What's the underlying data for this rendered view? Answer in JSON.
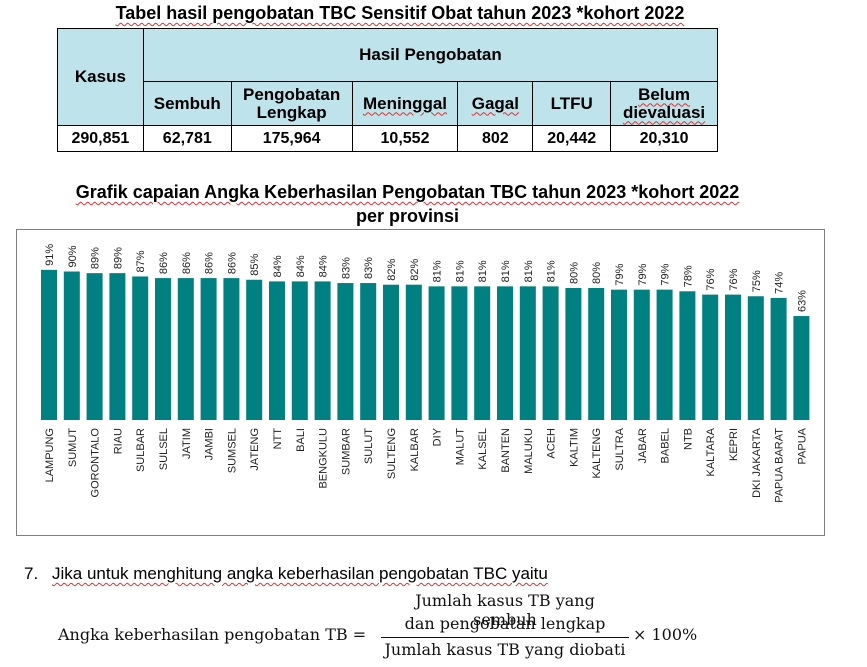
{
  "table_title": "Tabel hasil pengobatan TBC Sensitif Obat tahun 2023 *kohort 2022",
  "table": {
    "kasus_label": "Kasus",
    "group_label": "Hasil Pengobatan",
    "columns": [
      "Sembuh",
      "Pengobatan Lengkap",
      "Meninggal",
      "Gagal",
      "LTFU",
      "Belum dievaluasi"
    ],
    "values": {
      "kasus": "290,851",
      "sembuh": "62,781",
      "lengkap": "175,964",
      "meninggal": "10,552",
      "gagal": "802",
      "ltfu": "20,442",
      "belum": "20,310"
    }
  },
  "chart_title_line1": "Grafik capaian Angka Keberhasilan Pengobatan TBC tahun 2023 *kohort 2022",
  "chart_title_line2": "per provinsi",
  "chart_data": {
    "type": "bar",
    "title": "Grafik capaian Angka Keberhasilan Pengobatan TBC tahun 2023 *kohort 2022 per provinsi",
    "categories": [
      "LAMPUNG",
      "SUMUT",
      "GORONTALO",
      "RIAU",
      "SULBAR",
      "SULSEL",
      "JATIM",
      "JAMBI",
      "SUMSEL",
      "JATENG",
      "NTT",
      "BALI",
      "BENGKULU",
      "SUMBAR",
      "SULUT",
      "SULTENG",
      "KALBAR",
      "DIY",
      "MALUT",
      "KALSEL",
      "BANTEN",
      "MALUKU",
      "ACEH",
      "KALTIM",
      "KALTENG",
      "SULTRA",
      "JABAR",
      "BABEL",
      "NTB",
      "KALTARA",
      "KEPRI",
      "DKI JAKARTA",
      "PAPUA BARAT",
      "PAPUA"
    ],
    "values": [
      91,
      90,
      89,
      89,
      87,
      86,
      86,
      86,
      86,
      85,
      84,
      84,
      84,
      83,
      83,
      82,
      82,
      81,
      81,
      81,
      81,
      81,
      81,
      80,
      80,
      79,
      79,
      79,
      78,
      76,
      76,
      75,
      74,
      63
    ],
    "value_suffix": "%",
    "bar_color": "#008080",
    "ylim": [
      0,
      100
    ],
    "grid": false
  },
  "question": {
    "number": "7.",
    "text": "Jika untuk menghitung angka keberhasilan pengobatan TBC yaitu"
  },
  "formula": {
    "label": "Angka keberhasilan pengobatan TB =",
    "numerator_line1": "Jumlah kasus TB yang sembuh",
    "numerator_line2": "dan pengobatan lengkap",
    "denominator": "Jumlah kasus TB yang diobati",
    "multiplier": "× 100%"
  }
}
